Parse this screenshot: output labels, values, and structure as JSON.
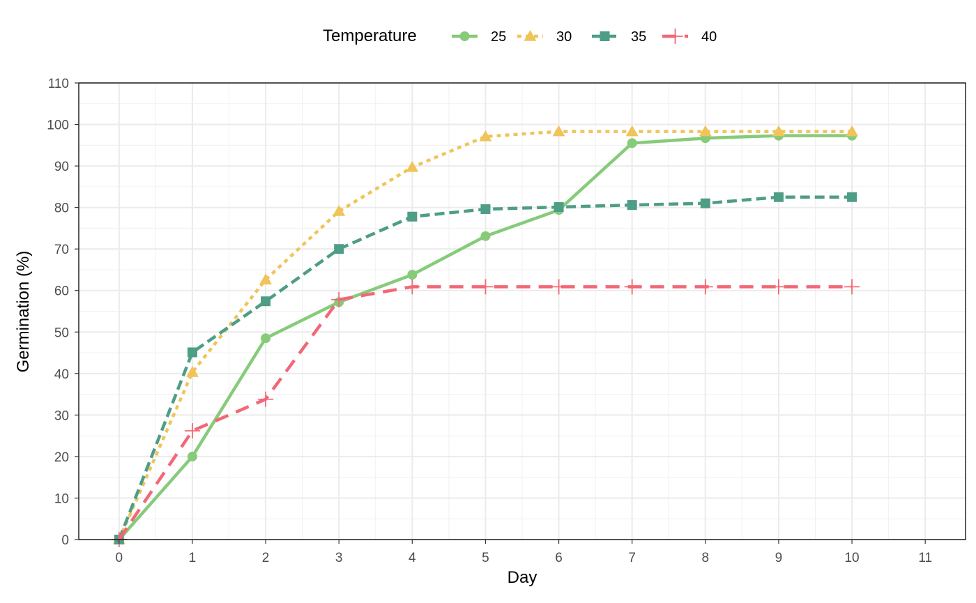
{
  "chart_data": {
    "type": "line",
    "title": "",
    "xlabel": "Day",
    "ylabel": "Germination (%)",
    "xlim": [
      -0.55,
      11.55
    ],
    "ylim": [
      0,
      110
    ],
    "x_ticks": [
      0,
      1,
      2,
      3,
      4,
      5,
      6,
      7,
      8,
      9,
      10,
      11
    ],
    "y_ticks": [
      0,
      10,
      20,
      30,
      40,
      50,
      60,
      70,
      80,
      90,
      100,
      110
    ],
    "grid": true,
    "legend": {
      "title": "Temperature",
      "position": "top"
    },
    "x": [
      0,
      1,
      2,
      3,
      4,
      5,
      6,
      7,
      8,
      9,
      10
    ],
    "series": [
      {
        "name": "25",
        "color": "#86CB7A",
        "linestyle": "solid",
        "marker": "circle",
        "values": [
          0,
          20,
          48.5,
          57.2,
          63.8,
          73.1,
          79.4,
          95.5,
          96.7,
          97.3,
          97.3
        ]
      },
      {
        "name": "30",
        "color": "#F0C45B",
        "linestyle": "dotted",
        "marker": "triangle",
        "values": [
          0,
          40.3,
          62.6,
          79.1,
          89.7,
          97.1,
          98.3,
          98.3,
          98.3,
          98.3,
          98.3
        ]
      },
      {
        "name": "35",
        "color": "#4E9D86",
        "linestyle": "dashed",
        "marker": "square",
        "values": [
          0,
          45.1,
          57.4,
          70.0,
          77.8,
          79.6,
          80.1,
          80.6,
          81.0,
          82.5,
          82.5
        ]
      },
      {
        "name": "40",
        "color": "#F26876",
        "linestyle": "longdash",
        "marker": "plus",
        "values": [
          0,
          26.2,
          33.8,
          57.8,
          60.9,
          60.9,
          60.9,
          60.9,
          60.9,
          60.9,
          60.9
        ]
      }
    ]
  }
}
